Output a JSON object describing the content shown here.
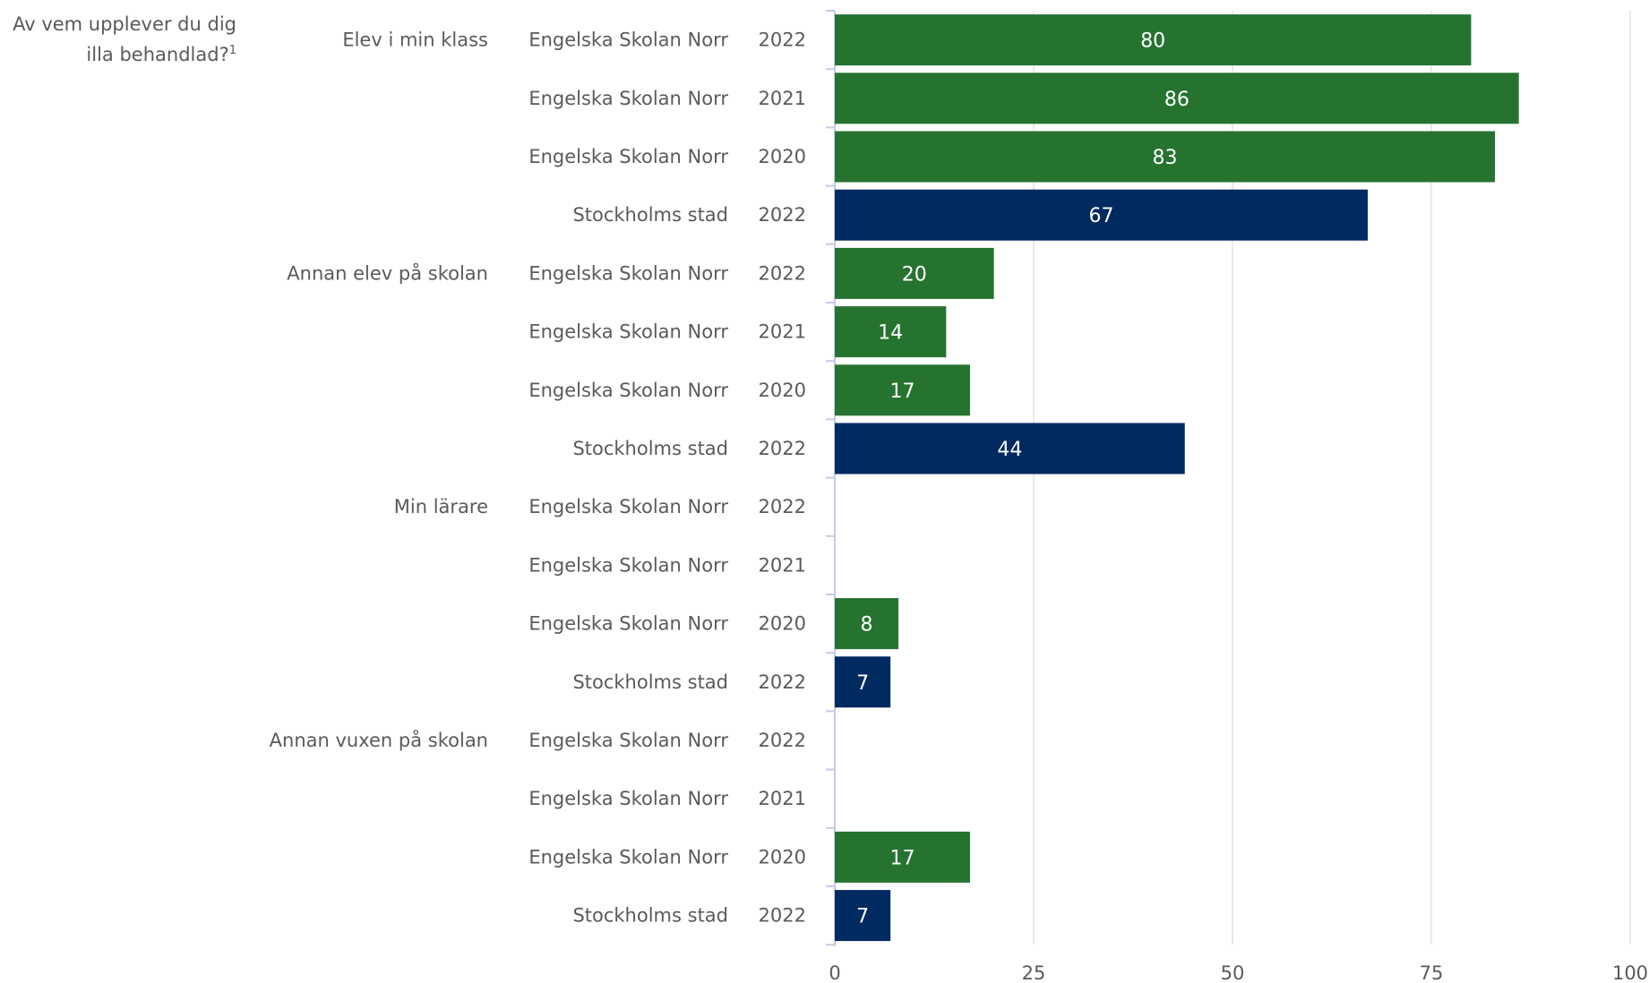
{
  "question": {
    "text": "Av vem upplever du dig illa behandlad?",
    "footnote": "1"
  },
  "colors": {
    "school": "#267330",
    "city": "#002a60",
    "grid": "#e2e4ea",
    "axis": "#c5cbe2",
    "text": "#5a5a5a",
    "label": "#ffffff"
  },
  "chart_data": {
    "type": "bar",
    "orientation": "horizontal",
    "xlim": [
      0,
      100
    ],
    "xticks": [
      0,
      25,
      50,
      75,
      100
    ],
    "grid": true,
    "groups": [
      {
        "label": "Elev i min klass",
        "rows": [
          {
            "unit": "Engelska Skolan Norr",
            "year": "2022",
            "value": 80
          },
          {
            "unit": "Engelska Skolan Norr",
            "year": "2021",
            "value": 86
          },
          {
            "unit": "Engelska Skolan Norr",
            "year": "2020",
            "value": 83
          },
          {
            "unit": "Stockholms stad",
            "year": "2022",
            "value": 67
          }
        ]
      },
      {
        "label": "Annan elev på skolan",
        "rows": [
          {
            "unit": "Engelska Skolan Norr",
            "year": "2022",
            "value": 20
          },
          {
            "unit": "Engelska Skolan Norr",
            "year": "2021",
            "value": 14
          },
          {
            "unit": "Engelska Skolan Norr",
            "year": "2020",
            "value": 17
          },
          {
            "unit": "Stockholms stad",
            "year": "2022",
            "value": 44
          }
        ]
      },
      {
        "label": "Min lärare",
        "rows": [
          {
            "unit": "Engelska Skolan Norr",
            "year": "2022",
            "value": null
          },
          {
            "unit": "Engelska Skolan Norr",
            "year": "2021",
            "value": null
          },
          {
            "unit": "Engelska Skolan Norr",
            "year": "2020",
            "value": 8
          },
          {
            "unit": "Stockholms stad",
            "year": "2022",
            "value": 7
          }
        ]
      },
      {
        "label": "Annan vuxen på skolan",
        "rows": [
          {
            "unit": "Engelska Skolan Norr",
            "year": "2022",
            "value": null
          },
          {
            "unit": "Engelska Skolan Norr",
            "year": "2021",
            "value": null
          },
          {
            "unit": "Engelska Skolan Norr",
            "year": "2020",
            "value": 17
          },
          {
            "unit": "Stockholms stad",
            "year": "2022",
            "value": 7
          }
        ]
      }
    ]
  }
}
